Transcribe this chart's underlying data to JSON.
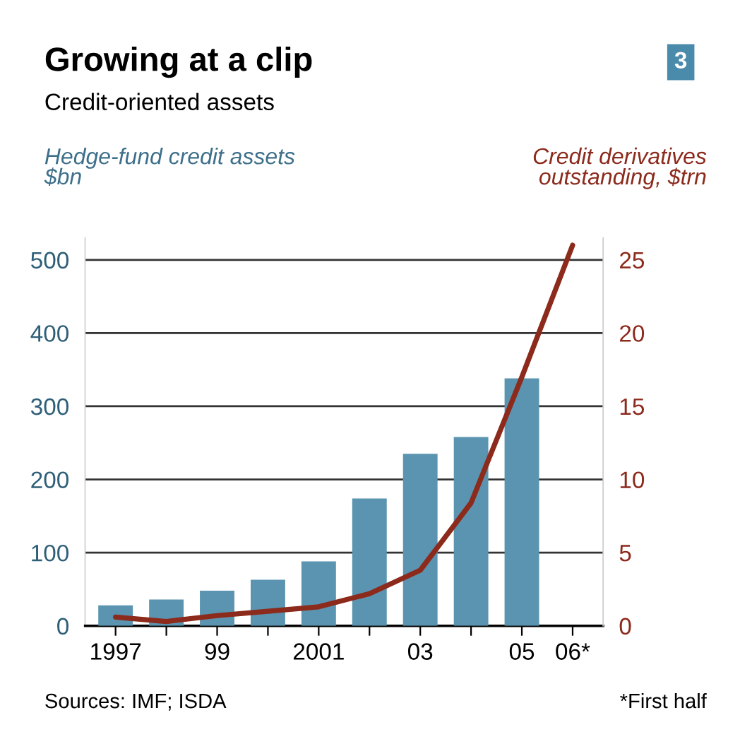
{
  "chart_data": {
    "type": "bar",
    "title": "Growing at a clip",
    "subtitle": "Credit-oriented assets",
    "ylabel": "Hedge-fund credit assets\n$bn",
    "y2label": "Credit derivatives\noutstanding, $trn",
    "categories": [
      "1997",
      null,
      "99",
      null,
      "2001",
      null,
      "03",
      null,
      "05",
      "06*"
    ],
    "series": [
      {
        "color": "#5b94b0",
        "values": [
          28,
          36,
          48,
          63,
          88,
          174,
          235,
          258,
          338,
          null
        ]
      },
      {
        "type": "line",
        "axis": "y2",
        "color": "#8c2a1c",
        "values": [
          0.6,
          0.3,
          0.7,
          1.0,
          1.3,
          2.2,
          3.8,
          8.4,
          17,
          26
        ]
      }
    ],
    "ylim": [
      0,
      530
    ],
    "yticks": [
      0,
      100,
      200,
      300,
      400,
      500
    ],
    "y2lim": [
      0,
      26.5
    ],
    "y2ticks": [
      0,
      5,
      10,
      15,
      20,
      25
    ],
    "grid": "y",
    "marker": "none",
    "line_style": "solid",
    "annotations": [
      "3",
      "Sources: IMF; ISDA",
      "*First half"
    ]
  }
}
